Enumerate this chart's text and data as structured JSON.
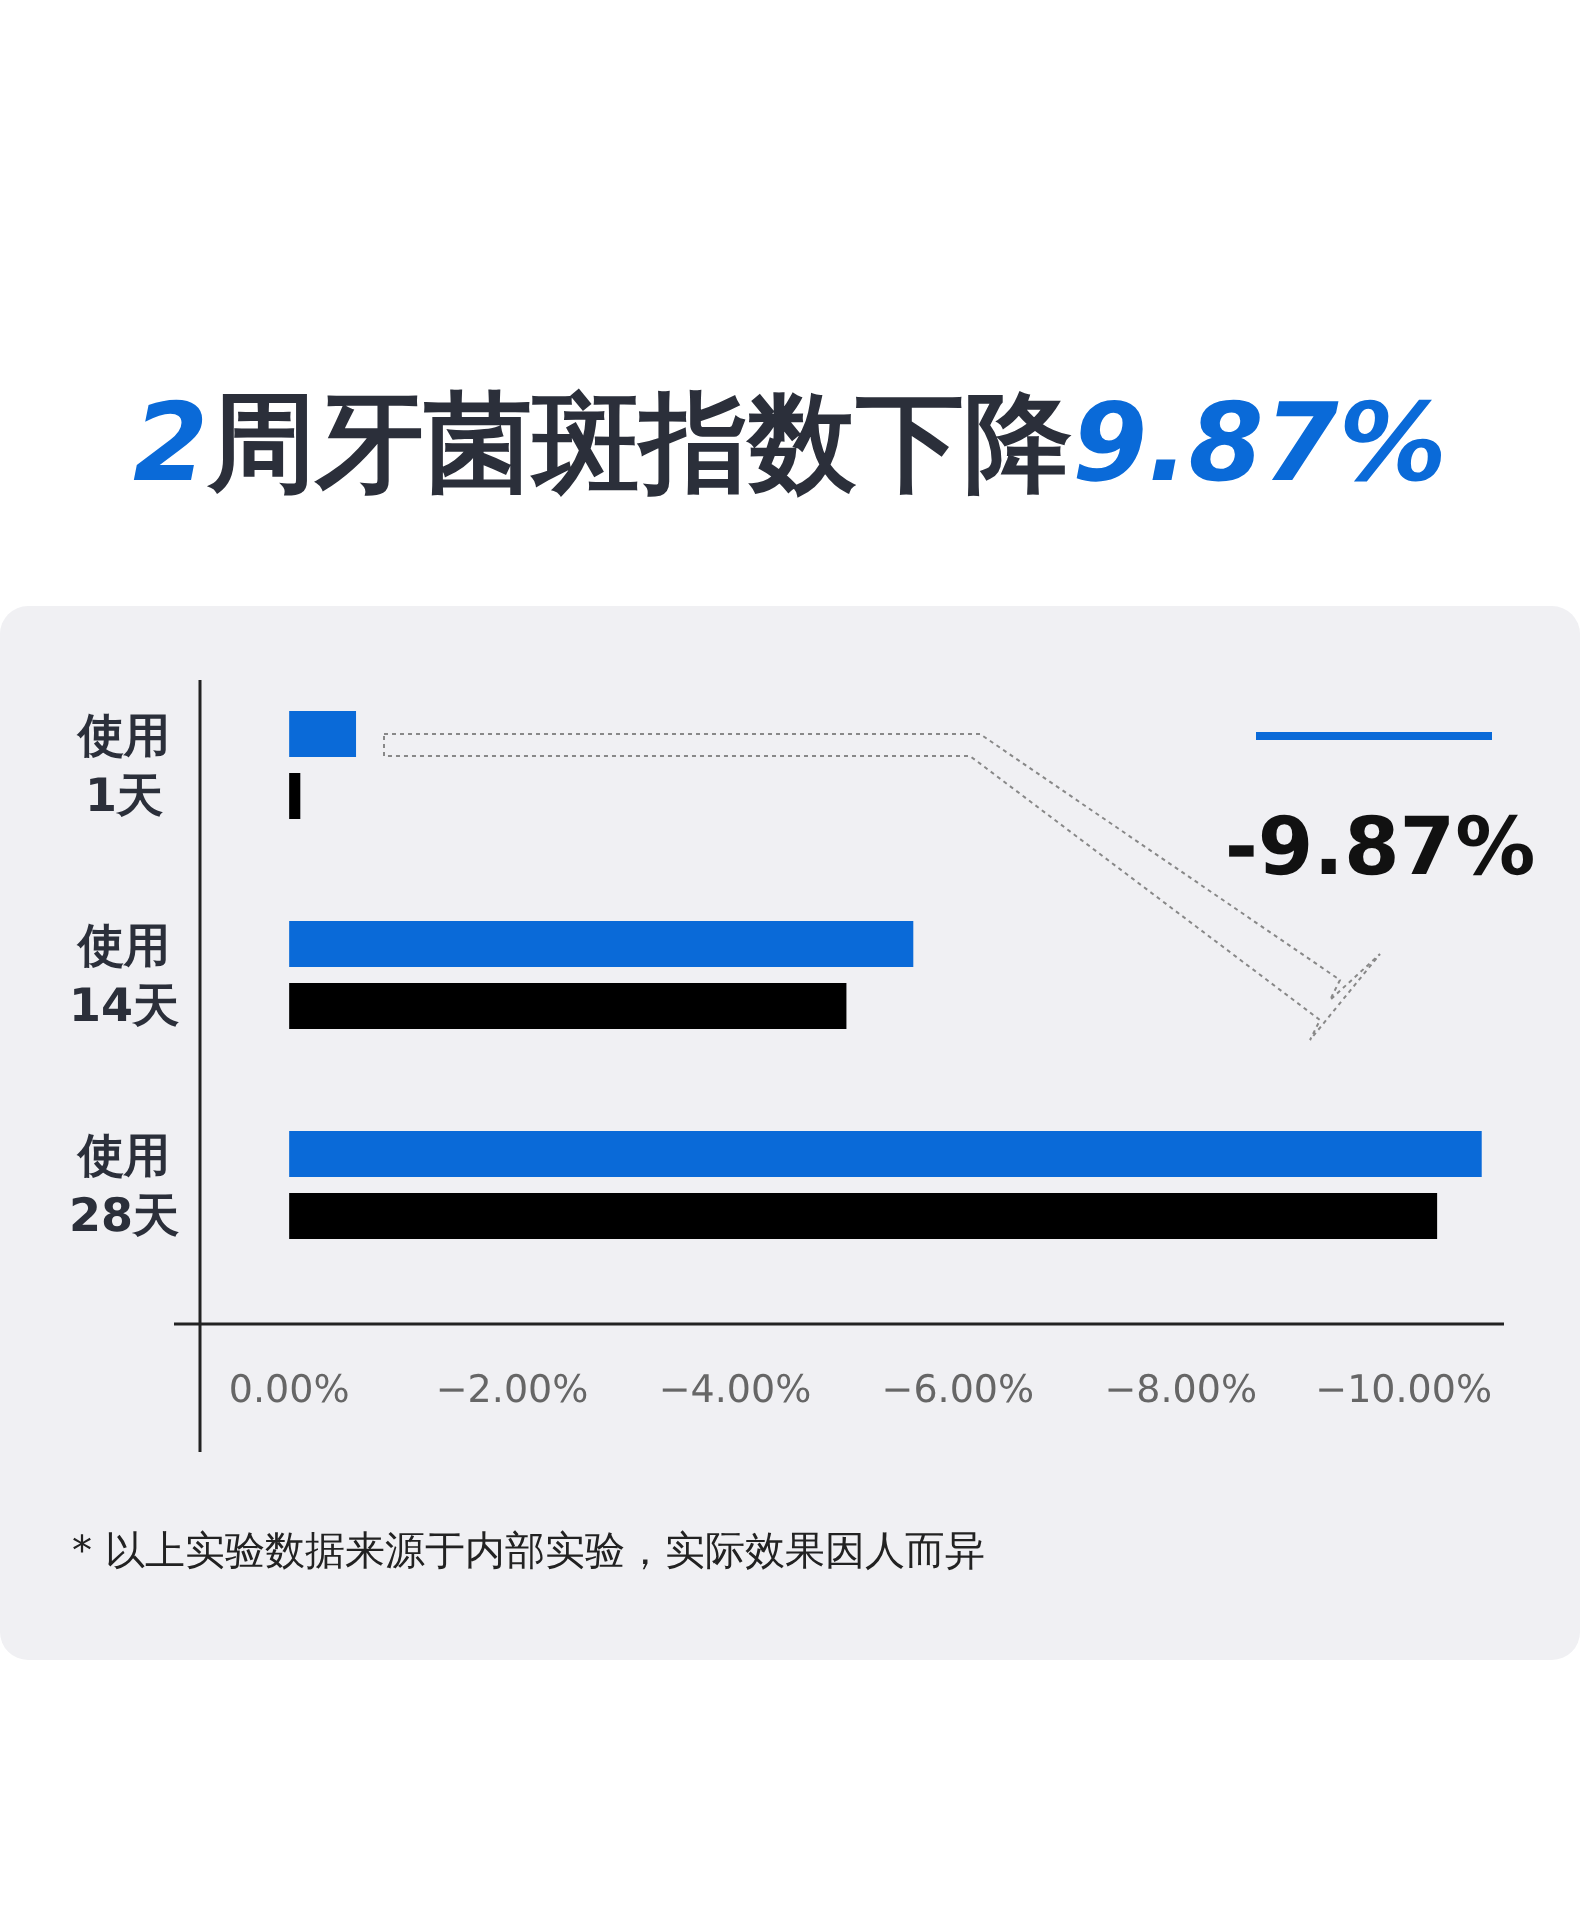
{
  "chart_data": {
    "type": "bar",
    "orientation": "horizontal",
    "title": "2周牙菌斑指数下降9.87%",
    "categories": [
      "使用\n1天",
      "使用\n14天",
      "使用\n28天"
    ],
    "series": [
      {
        "color": "#0a6ad8",
        "values": [
          -0.6,
          -5.6,
          -10.7
        ]
      },
      {
        "color": "#000000",
        "values": [
          -0.1,
          -5.0,
          -10.3
        ]
      }
    ],
    "xlim": [
      0.8,
      -10.9
    ],
    "xticks": [
      {
        "value": 0,
        "label": "0.00%"
      },
      {
        "value": -2,
        "label": "−2.00%"
      },
      {
        "value": -4,
        "label": "−4.00%"
      },
      {
        "value": -6,
        "label": "−6.00%"
      },
      {
        "value": -8,
        "label": "−8.00%"
      },
      {
        "value": -10,
        "label": "−10.00%"
      }
    ],
    "annotations": [
      "-9.87%",
      "* 以上实验数据来源于内部实验，实际效果因人而异"
    ]
  }
}
